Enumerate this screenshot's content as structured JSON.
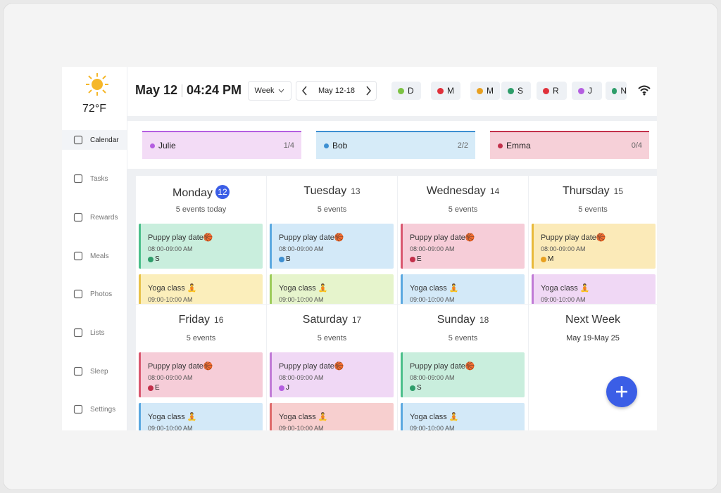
{
  "sidebar": {
    "weather": {
      "temperature": "72°F"
    },
    "nav": [
      "Calendar",
      "Tasks",
      "Rewards",
      "Meals",
      "Photos",
      "Lists",
      "Sleep",
      "Settings"
    ]
  },
  "header": {
    "date": "May 12",
    "time": "04:24 PM",
    "view": "Week",
    "range": "May 12-18",
    "members": [
      {
        "initial": "D",
        "color": "#7cc242"
      },
      {
        "initial": "M",
        "color": "#e0303a"
      },
      {
        "initial": "M",
        "color": "#e8a020"
      },
      {
        "initial": "S",
        "color": "#2e9d6a"
      },
      {
        "initial": "R",
        "color": "#e0303a"
      },
      {
        "initial": "J",
        "color": "#b45ee0"
      },
      {
        "initial": "N",
        "color": "#2e9d6a"
      }
    ]
  },
  "people": [
    {
      "name": "Julie",
      "progress": "1/4",
      "color": "#f3dcf6",
      "dot": "#b45ee0"
    },
    {
      "name": "Bob",
      "progress": "2/2",
      "color": "#d6ebf8",
      "dot": "#3d8fd1"
    },
    {
      "name": "Emma",
      "progress": "0/4",
      "color": "#f6d0d8",
      "dot": "#c2304a"
    }
  ],
  "days": [
    {
      "name": "Monday",
      "date": "12",
      "summary": "5 events today",
      "events": [
        {
          "title": "Puppy play date🏀",
          "time": "08:00-09:00 AM",
          "member": "S",
          "dot": "#2e9d6a",
          "color": "#c9eedd",
          "edge": "#4bbf8a"
        },
        {
          "title": "Yoga class 🧘",
          "time": "09:00-10:00 AM",
          "color": "#fbeebb",
          "edge": "#e8c24a"
        }
      ]
    },
    {
      "name": "Tuesday",
      "date": "13",
      "summary": "5 events",
      "events": [
        {
          "title": "Puppy play date🏀",
          "time": "08:00-09:00 AM",
          "member": "B",
          "dot": "#3d8fd1",
          "color": "#d3e9f8",
          "edge": "#5aa8e0"
        },
        {
          "title": "Yoga class 🧘",
          "time": "09:00-10:00 AM",
          "color": "#e6f4cc",
          "edge": "#9ccc5a"
        }
      ]
    },
    {
      "name": "Wednesday",
      "date": "14",
      "summary": "5 events",
      "events": [
        {
          "title": "Puppy play date🏀",
          "time": "08:00-09:00 AM",
          "member": "E",
          "dot": "#c2304a",
          "color": "#f6cdd8",
          "edge": "#d9576f"
        },
        {
          "title": "Yoga class 🧘",
          "time": "09:00-10:00 AM",
          "color": "#d3e9f8",
          "edge": "#5aa8e0"
        }
      ]
    },
    {
      "name": "Thursday",
      "date": "15",
      "summary": "5 events",
      "events": [
        {
          "title": "Puppy play date🏀",
          "time": "08:00-09:00 AM",
          "member": "M",
          "dot": "#e8a020",
          "color": "#fbeab8",
          "edge": "#e8b93a"
        },
        {
          "title": "Yoga class 🧘",
          "time": "09:00-10:00 AM",
          "color": "#f0d8f5",
          "edge": "#c07ad6"
        }
      ]
    },
    {
      "name": "Friday",
      "date": "16",
      "summary": "5 events",
      "events": [
        {
          "title": "Puppy play date🏀",
          "time": "08:00-09:00 AM",
          "member": "E",
          "dot": "#c2304a",
          "color": "#f6cdd8",
          "edge": "#d9576f"
        },
        {
          "title": "Yoga class 🧘",
          "time": "09:00-10:00 AM",
          "color": "#d3e9f8",
          "edge": "#5aa8e0"
        }
      ]
    },
    {
      "name": "Saturday",
      "date": "17",
      "summary": "5 events",
      "events": [
        {
          "title": "Puppy play date🏀",
          "time": "08:00-09:00 AM",
          "member": "J",
          "dot": "#b45ee0",
          "color": "#f0d8f5",
          "edge": "#c07ad6"
        },
        {
          "title": "Yoga class 🧘",
          "time": "09:00-10:00 AM",
          "color": "#f7cfcf",
          "edge": "#de6a6a"
        }
      ]
    },
    {
      "name": "Sunday",
      "date": "18",
      "summary": "5 events",
      "events": [
        {
          "title": "Puppy play date🏀",
          "time": "08:00-09:00 AM",
          "member": "S",
          "dot": "#2e9d6a",
          "color": "#c9eedd",
          "edge": "#4bbf8a"
        },
        {
          "title": "Yoga class 🧘",
          "time": "09:00-10:00 AM",
          "color": "#d3e9f8",
          "edge": "#5aa8e0"
        }
      ]
    }
  ],
  "next_week": {
    "title": "Next Week",
    "range": "May 19-May 25"
  }
}
